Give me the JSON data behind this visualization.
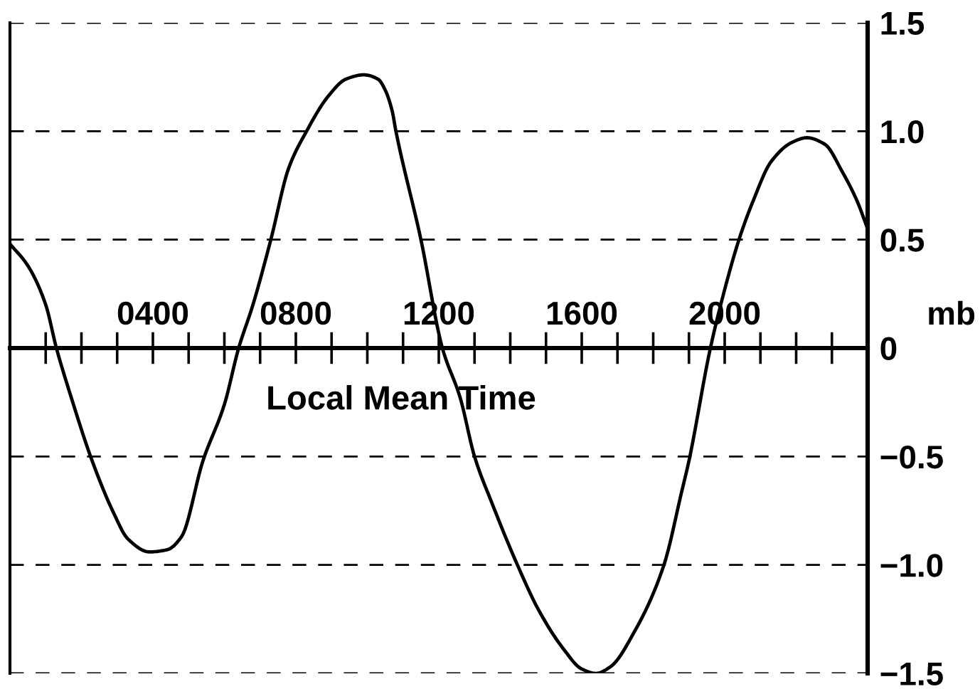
{
  "chart_data": {
    "type": "line",
    "xlabel": "Local Mean Time",
    "ylabel": "mb",
    "x": [
      0,
      50,
      100,
      130,
      170,
      230,
      290,
      330,
      390,
      440,
      480,
      540,
      600,
      640,
      680,
      730,
      780,
      830,
      890,
      940,
      990,
      1030,
      1050,
      1070,
      1080,
      1150,
      1210,
      1260,
      1300,
      1350,
      1420,
      1480,
      1550,
      1600,
      1640,
      1680,
      1750,
      1830,
      1880,
      1900,
      1960,
      2000,
      2040,
      2080,
      2130,
      2190,
      2230,
      2280,
      2330,
      2370,
      2400
    ],
    "series": [
      {
        "color": "#000000",
        "values": [
          0.48,
          0.38,
          0.2,
          0,
          -0.22,
          -0.52,
          -0.76,
          -0.88,
          -0.94,
          -0.93,
          -0.87,
          -0.52,
          -0.26,
          0,
          0.2,
          0.5,
          0.83,
          1.0,
          1.16,
          1.24,
          1.26,
          1.24,
          1.19,
          1.09,
          1.0,
          0.5,
          0,
          -0.23,
          -0.5,
          -0.72,
          -1.0,
          -1.21,
          -1.39,
          -1.48,
          -1.5,
          -1.47,
          -1.3,
          -1.0,
          -0.66,
          -0.52,
          0,
          0.27,
          0.5,
          0.68,
          0.86,
          0.95,
          0.97,
          0.94,
          0.81,
          0.68,
          0.55
        ]
      }
    ],
    "xlim": [
      0,
      2400
    ],
    "xticks": [
      {
        "value": 100,
        "label": null
      },
      {
        "value": 200,
        "label": null
      },
      {
        "value": 300,
        "label": null
      },
      {
        "value": 400,
        "label": "0400"
      },
      {
        "value": 500,
        "label": null
      },
      {
        "value": 600,
        "label": null
      },
      {
        "value": 700,
        "label": null
      },
      {
        "value": 800,
        "label": "0800"
      },
      {
        "value": 900,
        "label": null
      },
      {
        "value": 1000,
        "label": null
      },
      {
        "value": 1100,
        "label": null
      },
      {
        "value": 1200,
        "label": "1200"
      },
      {
        "value": 1300,
        "label": null
      },
      {
        "value": 1400,
        "label": null
      },
      {
        "value": 1500,
        "label": null
      },
      {
        "value": 1600,
        "label": "1600"
      },
      {
        "value": 1700,
        "label": null
      },
      {
        "value": 1800,
        "label": null
      },
      {
        "value": 1900,
        "label": null
      },
      {
        "value": 2000,
        "label": "2000"
      },
      {
        "value": 2100,
        "label": null
      },
      {
        "value": 2200,
        "label": null
      },
      {
        "value": 2300,
        "label": null
      }
    ],
    "ylim": [
      -1.5,
      1.5
    ],
    "yticks": [
      {
        "value": -1.5,
        "label": "−1.5"
      },
      {
        "value": -1,
        "label": "−1.0"
      },
      {
        "value": -0.5,
        "label": "−0.5"
      },
      0,
      0.5,
      {
        "value": 1,
        "label": "1.0"
      },
      1.5
    ],
    "grid": "y"
  }
}
